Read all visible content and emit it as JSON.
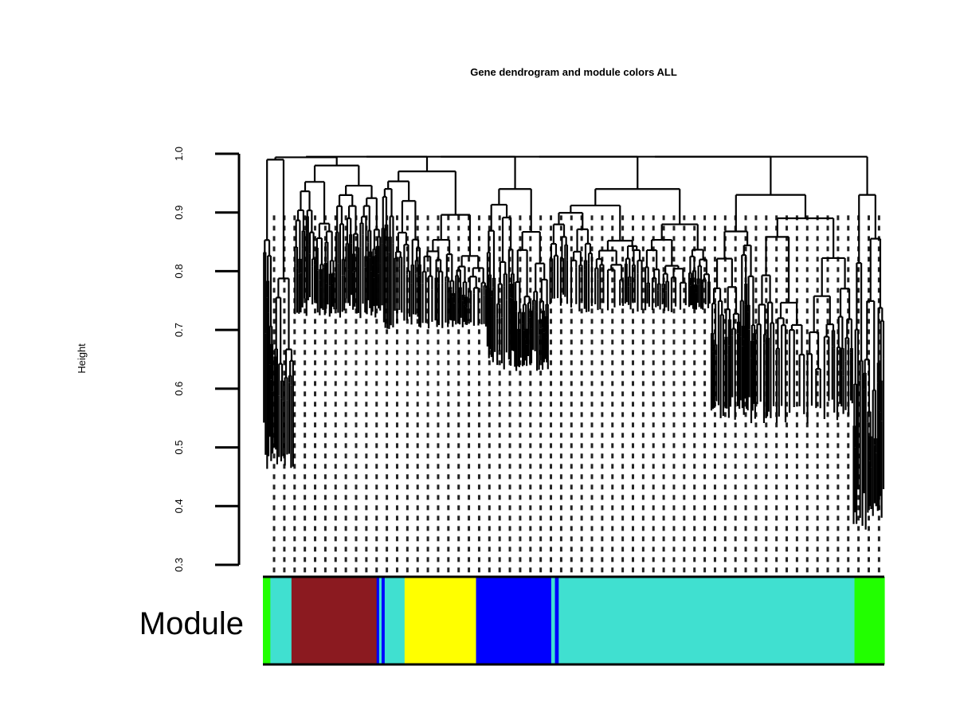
{
  "chart_data": {
    "type": "dendrogram",
    "title": "Gene dendrogram and module colors ALL",
    "ylabel": "Height",
    "ylim": [
      0.3,
      1.0
    ],
    "yticks": [
      "0.3",
      "0.4",
      "0.5",
      "0.6",
      "0.7",
      "0.8",
      "0.9",
      "1.0"
    ],
    "color_row_label": "Module",
    "module_colors": [
      {
        "module": "green",
        "color": "#22ff00",
        "fraction": 0.012
      },
      {
        "module": "turquoise",
        "color": "#40e0d0",
        "fraction": 0.034
      },
      {
        "module": "brown",
        "color": "#8b1a20",
        "fraction": 0.137
      },
      {
        "module": "blue",
        "color": "#0000ff",
        "fraction": 0.004
      },
      {
        "module": "turquoise",
        "color": "#40e0d0",
        "fraction": 0.004
      },
      {
        "module": "blue",
        "color": "#0000ff",
        "fraction": 0.005
      },
      {
        "module": "turquoise",
        "color": "#40e0d0",
        "fraction": 0.032
      },
      {
        "module": "yellow",
        "color": "#ffff00",
        "fraction": 0.115
      },
      {
        "module": "blue",
        "color": "#0000ff",
        "fraction": 0.121
      },
      {
        "module": "turquoise",
        "color": "#40e0d0",
        "fraction": 0.006
      },
      {
        "module": "blue",
        "color": "#0000ff",
        "fraction": 0.006
      },
      {
        "module": "turquoise",
        "color": "#40e0d0",
        "fraction": 0.476
      },
      {
        "module": "green",
        "color": "#22ff00",
        "fraction": 0.048
      }
    ],
    "clusters": [
      {
        "region": [
          0.0,
          0.05
        ],
        "top": 0.99,
        "bottom": 0.46
      },
      {
        "region": [
          0.05,
          0.19
        ],
        "top": 0.98,
        "bottom": 0.72
      },
      {
        "region": [
          0.19,
          0.36
        ],
        "top": 0.97,
        "bottom": 0.7
      },
      {
        "region": [
          0.36,
          0.46
        ],
        "top": 0.94,
        "bottom": 0.63
      },
      {
        "region": [
          0.46,
          0.72
        ],
        "top": 0.94,
        "bottom": 0.73
      },
      {
        "region": [
          0.72,
          0.95
        ],
        "top": 0.93,
        "bottom": 0.54
      },
      {
        "region": [
          0.95,
          1.0
        ],
        "top": 0.93,
        "bottom": 0.36
      }
    ]
  }
}
